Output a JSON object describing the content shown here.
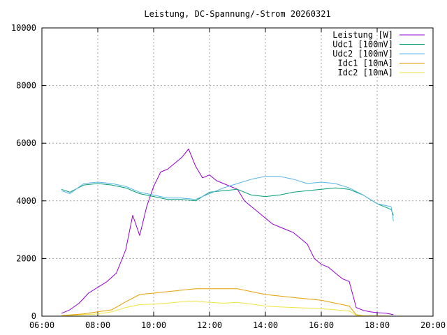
{
  "chart_data": {
    "type": "line",
    "title": "Leistung, DC-Spannung/-Strom 20260321",
    "xlabel": "",
    "ylabel": "",
    "xlim": [
      "06:00",
      "20:00"
    ],
    "ylim": [
      0,
      10000
    ],
    "grid": true,
    "legend_position": "top-right",
    "x_ticks": [
      "06:00",
      "08:00",
      "10:00",
      "12:00",
      "14:00",
      "16:00",
      "18:00",
      "20:00"
    ],
    "y_ticks": [
      0,
      2000,
      4000,
      6000,
      8000,
      10000
    ],
    "series": [
      {
        "name": "Leistung [W]",
        "color": "#9400d3",
        "x": [
          "06:42",
          "07:00",
          "07:20",
          "07:40",
          "08:00",
          "08:20",
          "08:40",
          "09:00",
          "09:15",
          "09:30",
          "09:45",
          "10:00",
          "10:15",
          "10:30",
          "10:45",
          "11:00",
          "11:15",
          "11:30",
          "11:45",
          "12:00",
          "12:15",
          "12:30",
          "12:45",
          "13:00",
          "13:15",
          "13:30",
          "13:45",
          "14:00",
          "14:15",
          "14:30",
          "14:45",
          "15:00",
          "15:15",
          "15:30",
          "15:45",
          "16:00",
          "16:15",
          "16:30",
          "16:45",
          "17:00",
          "17:15",
          "17:30",
          "17:45",
          "18:00",
          "18:20",
          "18:35"
        ],
        "values": [
          100,
          220,
          450,
          800,
          1000,
          1200,
          1500,
          2300,
          3500,
          2800,
          3800,
          4500,
          5000,
          5100,
          5300,
          5500,
          5800,
          5200,
          4800,
          4900,
          4700,
          4600,
          4500,
          4400,
          4000,
          3800,
          3600,
          3400,
          3200,
          3100,
          3000,
          2900,
          2700,
          2500,
          2000,
          1800,
          1700,
          1500,
          1300,
          1200,
          300,
          200,
          150,
          120,
          100,
          50
        ]
      },
      {
        "name": "Udc1 [100mV]",
        "color": "#009e73",
        "x": [
          "06:42",
          "07:00",
          "07:30",
          "08:00",
          "08:30",
          "09:00",
          "09:30",
          "10:00",
          "10:30",
          "11:00",
          "11:30",
          "12:00",
          "12:30",
          "13:00",
          "13:30",
          "14:00",
          "14:30",
          "15:00",
          "15:30",
          "16:00",
          "16:30",
          "17:00",
          "17:30",
          "18:00",
          "18:30",
          "18:35"
        ],
        "values": [
          4400,
          4300,
          4550,
          4600,
          4550,
          4450,
          4250,
          4150,
          4050,
          4050,
          4000,
          4300,
          4350,
          4400,
          4200,
          4150,
          4200,
          4300,
          4350,
          4400,
          4450,
          4400,
          4200,
          3900,
          3700,
          3500
        ]
      },
      {
        "name": "Udc2 [100mV]",
        "color": "#56b4e9",
        "x": [
          "06:42",
          "07:00",
          "07:30",
          "08:00",
          "08:30",
          "09:00",
          "09:30",
          "10:00",
          "10:30",
          "11:00",
          "11:30",
          "12:00",
          "12:30",
          "13:00",
          "13:30",
          "14:00",
          "14:30",
          "15:00",
          "15:30",
          "16:00",
          "16:30",
          "17:00",
          "17:30",
          "18:00",
          "18:30",
          "18:35"
        ],
        "values": [
          4350,
          4250,
          4600,
          4650,
          4600,
          4500,
          4300,
          4200,
          4100,
          4100,
          4050,
          4250,
          4450,
          4600,
          4750,
          4850,
          4850,
          4750,
          4600,
          4650,
          4600,
          4450,
          4200,
          3900,
          3800,
          3300
        ]
      },
      {
        "name": "Idc1 [10mA]",
        "color": "#e69f00",
        "x": [
          "06:42",
          "07:00",
          "07:30",
          "08:00",
          "08:30",
          "09:00",
          "09:30",
          "10:00",
          "10:30",
          "11:00",
          "11:30",
          "12:00",
          "12:30",
          "13:00",
          "13:30",
          "14:00",
          "14:30",
          "15:00",
          "15:30",
          "16:00",
          "16:30",
          "17:00",
          "17:15",
          "17:30",
          "18:00",
          "18:35"
        ],
        "values": [
          20,
          40,
          80,
          150,
          220,
          500,
          750,
          800,
          850,
          900,
          950,
          950,
          950,
          950,
          850,
          750,
          700,
          650,
          600,
          550,
          450,
          350,
          50,
          20,
          10,
          0
        ]
      },
      {
        "name": "Idc2 [10mA]",
        "color": "#f0e442",
        "x": [
          "06:42",
          "07:00",
          "07:30",
          "08:00",
          "08:30",
          "09:00",
          "09:30",
          "10:00",
          "10:30",
          "11:00",
          "11:30",
          "12:00",
          "12:30",
          "13:00",
          "13:30",
          "14:00",
          "14:30",
          "15:00",
          "15:30",
          "16:00",
          "16:30",
          "17:00",
          "17:15",
          "17:30",
          "18:00",
          "18:35"
        ],
        "values": [
          10,
          20,
          50,
          80,
          150,
          300,
          400,
          420,
          450,
          500,
          520,
          480,
          450,
          480,
          420,
          350,
          320,
          300,
          280,
          260,
          220,
          180,
          30,
          15,
          5,
          0
        ]
      }
    ]
  }
}
